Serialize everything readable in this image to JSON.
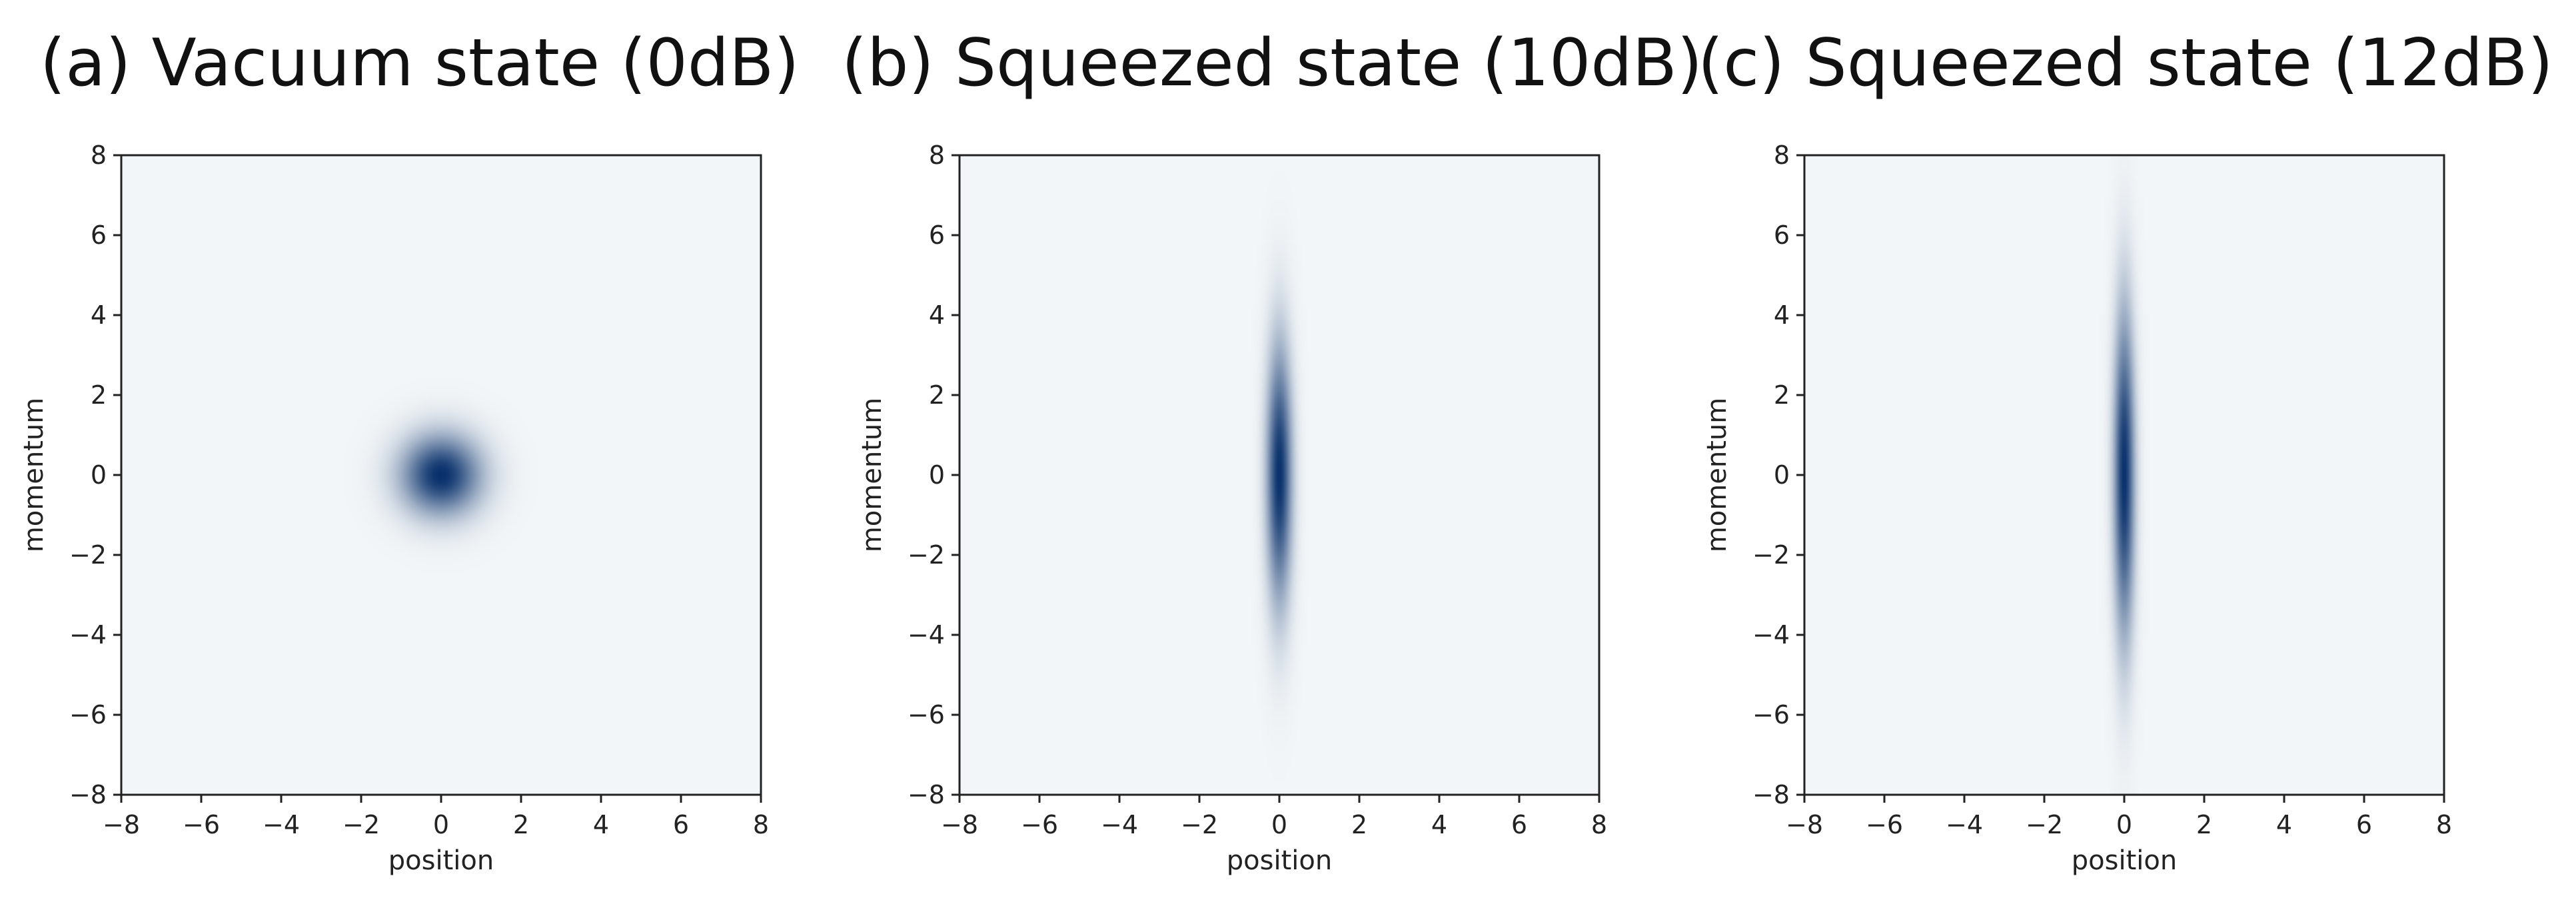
{
  "chart_data": [
    {
      "type": "heatmap",
      "title": "(a) Vacuum state (0dB)",
      "xlabel": "position",
      "ylabel": "momentum",
      "xlim": [
        -8,
        8
      ],
      "ylim": [
        -8,
        8
      ],
      "xticks": [
        "−8",
        "−6",
        "−4",
        "−2",
        "0",
        "2",
        "4",
        "6",
        "8"
      ],
      "yticks": [
        "8",
        "6",
        "4",
        "2",
        "0",
        "−2",
        "−4",
        "−6",
        "−8"
      ],
      "x_values": [
        -8,
        -6,
        -4,
        -2,
        0,
        2,
        4,
        6,
        8
      ],
      "y_values": [
        8,
        6,
        4,
        2,
        0,
        -2,
        -4,
        -6,
        -8
      ],
      "colormap": [
        "#f3f6f8",
        "#08306b"
      ],
      "grid": false,
      "distribution": {
        "center": [
          0,
          0
        ],
        "sigma_x": 0.7,
        "sigma_y": 0.7
      }
    },
    {
      "type": "heatmap",
      "title": "(b) Squeezed state (10dB)",
      "xlabel": "position",
      "ylabel": "momentum",
      "xlim": [
        -8,
        8
      ],
      "ylim": [
        -8,
        8
      ],
      "xticks": [
        "−8",
        "−6",
        "−4",
        "−2",
        "0",
        "2",
        "4",
        "6",
        "8"
      ],
      "yticks": [
        "8",
        "6",
        "4",
        "2",
        "0",
        "−2",
        "−4",
        "−6",
        "−8"
      ],
      "x_values": [
        -8,
        -6,
        -4,
        -2,
        0,
        2,
        4,
        6,
        8
      ],
      "y_values": [
        8,
        6,
        4,
        2,
        0,
        -2,
        -4,
        -6,
        -8
      ],
      "colormap": [
        "#f3f6f8",
        "#08306b"
      ],
      "grid": false,
      "distribution": {
        "center": [
          0,
          0
        ],
        "sigma_x": 0.22,
        "sigma_y": 2.2
      }
    },
    {
      "type": "heatmap",
      "title": "(c) Squeezed state (12dB)",
      "xlabel": "position",
      "ylabel": "momentum",
      "xlim": [
        -8,
        8
      ],
      "ylim": [
        -8,
        8
      ],
      "xticks": [
        "−8",
        "−6",
        "−4",
        "−2",
        "0",
        "2",
        "4",
        "6",
        "8"
      ],
      "yticks": [
        "8",
        "6",
        "4",
        "2",
        "0",
        "−2",
        "−4",
        "−6",
        "−8"
      ],
      "x_values": [
        -8,
        -6,
        -4,
        -2,
        0,
        2,
        4,
        6,
        8
      ],
      "y_values": [
        8,
        6,
        4,
        2,
        0,
        -2,
        -4,
        -6,
        -8
      ],
      "colormap": [
        "#f3f6f8",
        "#08306b"
      ],
      "grid": false,
      "distribution": {
        "center": [
          0,
          0
        ],
        "sigma_x": 0.18,
        "sigma_y": 2.8
      }
    }
  ]
}
